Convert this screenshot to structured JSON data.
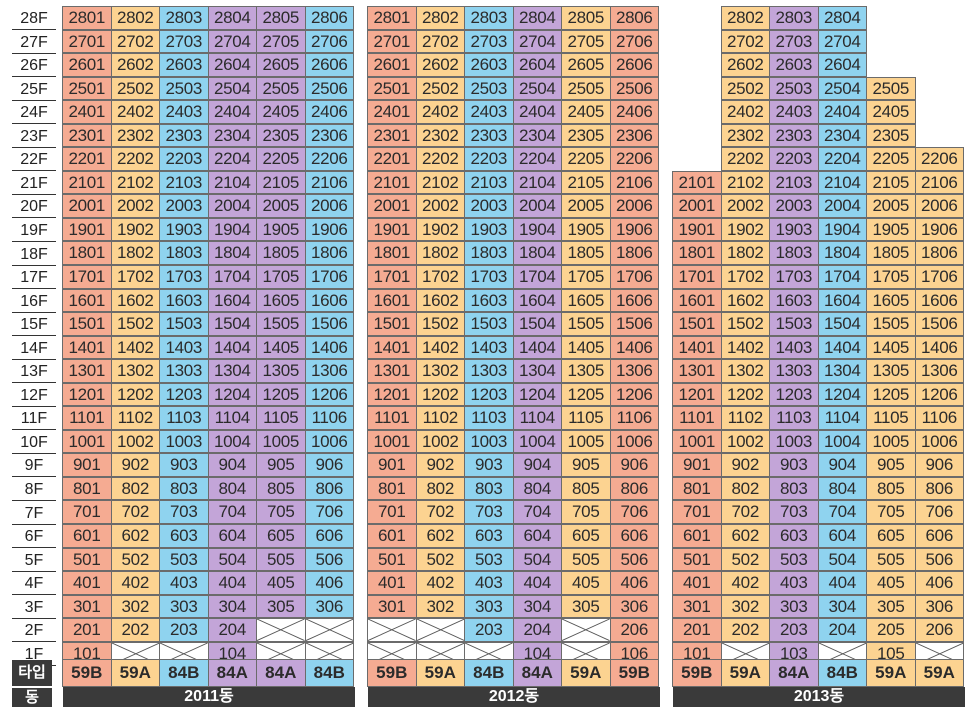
{
  "floors": [
    "28F",
    "27F",
    "26F",
    "25F",
    "24F",
    "23F",
    "22F",
    "21F",
    "20F",
    "19F",
    "18F",
    "17F",
    "16F",
    "15F",
    "14F",
    "13F",
    "12F",
    "11F",
    "10F",
    "9F",
    "8F",
    "7F",
    "6F",
    "5F",
    "4F",
    "3F",
    "2F",
    "1F"
  ],
  "labels": {
    "type": "타입",
    "dong": "동"
  },
  "palette": {
    "salmon": "#f5ab92",
    "orange": "#fcd391",
    "blue": "#8fd3ef",
    "purple": "#c3a5d8"
  },
  "buildings": [
    {
      "name": "2011동",
      "types": [
        "59B",
        "59A",
        "84B",
        "84A",
        "84A",
        "84B"
      ],
      "colors": [
        "salmon",
        "orange",
        "blue",
        "purple",
        "purple",
        "blue"
      ],
      "top_floor": 28,
      "floor_overrides": {
        "2": [
          "201",
          "202",
          "203",
          "204",
          "x",
          "x"
        ],
        "1": [
          "101",
          "x",
          "x",
          "104",
          "x",
          "x"
        ]
      }
    },
    {
      "name": "2012동",
      "types": [
        "59B",
        "59A",
        "84B",
        "84A",
        "59A",
        "59B"
      ],
      "colors": [
        "salmon",
        "orange",
        "blue",
        "purple",
        "orange",
        "salmon"
      ],
      "top_floor": 28,
      "floor_overrides": {
        "2": [
          "x",
          "x",
          "203",
          "204",
          "x",
          "206"
        ],
        "1": [
          "x",
          "x",
          "x",
          "104",
          "x",
          "106"
        ]
      }
    },
    {
      "name": "2013동",
      "types": [
        "59B",
        "59A",
        "84A",
        "84B",
        "59A",
        "59A"
      ],
      "colors": [
        "salmon",
        "orange",
        "purple",
        "blue",
        "orange",
        "orange"
      ],
      "top_floor": 28,
      "floor_overrides": {
        "28": [
          "none",
          "2802",
          "2803",
          "2804",
          "none",
          "none"
        ],
        "27": [
          "none",
          "2702",
          "2703",
          "2704",
          "none",
          "none"
        ],
        "26": [
          "none",
          "2602",
          "2603",
          "2604",
          "none",
          "none"
        ],
        "25": [
          "none",
          "2502",
          "2503",
          "2504",
          "2505",
          "none"
        ],
        "24": [
          "none",
          "2402",
          "2403",
          "2404",
          "2405",
          "none"
        ],
        "23": [
          "none",
          "2302",
          "2303",
          "2304",
          "2305",
          "none"
        ],
        "22": [
          "none",
          "2202",
          "2203",
          "2204",
          "2205",
          "2206"
        ],
        "2": [
          "201",
          "202",
          "203",
          "204",
          "205",
          "206"
        ],
        "1": [
          "101",
          "x",
          "103",
          "x",
          "105",
          "x"
        ]
      }
    }
  ]
}
